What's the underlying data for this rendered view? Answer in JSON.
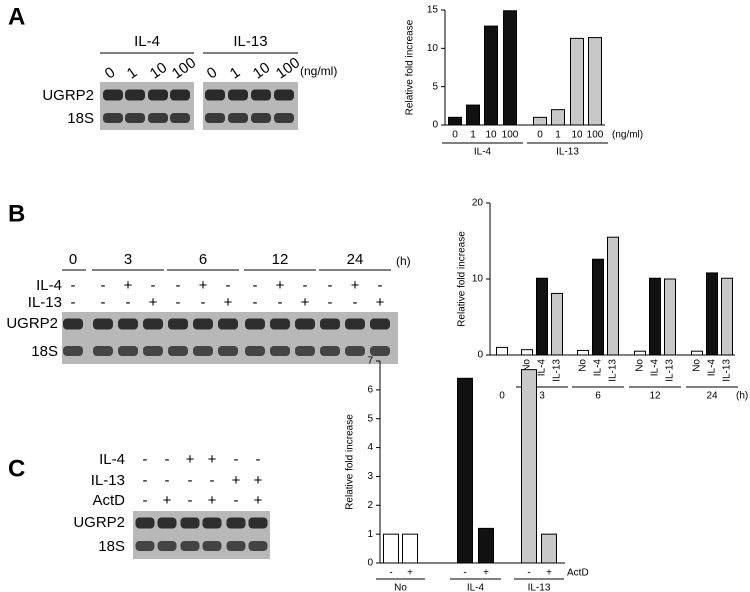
{
  "panel_labels": [
    "A",
    "B",
    "C"
  ],
  "blots": [
    {
      "group_labels": [
        "IL-4",
        "IL-13"
      ],
      "lane_labels": [
        [
          "0",
          "1",
          "10",
          "100"
        ],
        [
          "0",
          "1",
          "10",
          "100"
        ]
      ],
      "unit": "(ng/ml)",
      "rows": [
        "UGRP2",
        "18S"
      ]
    },
    {
      "time_labels": [
        "0",
        "3",
        "6",
        "12",
        "24"
      ],
      "unit": "(h)",
      "treatments": [
        {
          "name": "IL-4",
          "signs": [
            "-",
            "-",
            "+",
            "-",
            "-",
            "+",
            "-",
            "-",
            "+",
            "-",
            "-",
            "+",
            "-"
          ]
        },
        {
          "name": "IL-13",
          "signs": [
            "-",
            "-",
            "-",
            "+",
            "-",
            "-",
            "+",
            "-",
            "-",
            "+",
            "-",
            "-",
            "+"
          ]
        }
      ],
      "rows": [
        "UGRP2",
        "18S"
      ]
    },
    {
      "treatments": [
        {
          "name": "IL-4",
          "signs": [
            "-",
            "-",
            "+",
            "+",
            "-",
            "-"
          ]
        },
        {
          "name": "IL-13",
          "signs": [
            "-",
            "-",
            "-",
            "-",
            "+",
            "+"
          ]
        },
        {
          "name": "ActD",
          "signs": [
            "-",
            "+",
            "-",
            "+",
            "-",
            "+"
          ]
        }
      ],
      "rows": [
        "UGRP2",
        "18S"
      ]
    }
  ],
  "chart_data": [
    {
      "type": "bar",
      "ylabel": "Relative fold increase",
      "ylim": [
        0,
        15
      ],
      "yticks": [
        0,
        5,
        10,
        15
      ],
      "x_unit": "(ng/ml)",
      "groups": [
        {
          "name": "IL-4",
          "categories": [
            "0",
            "1",
            "10",
            "100"
          ],
          "values": [
            1,
            2.6,
            12.9,
            14.9
          ],
          "colors": [
            "#111111",
            "#111111",
            "#111111",
            "#111111"
          ]
        },
        {
          "name": "IL-13",
          "categories": [
            "0",
            "1",
            "10",
            "100"
          ],
          "values": [
            1,
            2,
            11.3,
            11.4
          ],
          "colors": [
            "#c8c8c8",
            "#c8c8c8",
            "#c8c8c8",
            "#c8c8c8"
          ]
        }
      ]
    },
    {
      "type": "bar",
      "ylabel": "Relative fold increase",
      "ylim": [
        0,
        20
      ],
      "yticks": [
        0,
        10,
        20
      ],
      "x_unit": "(h)",
      "groups": [
        {
          "name": "0",
          "categories": [
            null
          ],
          "values": [
            1
          ],
          "colors": [
            "#ffffff"
          ]
        },
        {
          "name": "3",
          "categories": [
            "No",
            "IL-4",
            "IL-13"
          ],
          "values": [
            0.7,
            10.1,
            8.1
          ],
          "colors": [
            "#ffffff",
            "#111111",
            "#c8c8c8"
          ]
        },
        {
          "name": "6",
          "categories": [
            "No",
            "IL-4",
            "IL-13"
          ],
          "values": [
            0.6,
            12.6,
            15.5
          ],
          "colors": [
            "#ffffff",
            "#111111",
            "#c8c8c8"
          ]
        },
        {
          "name": "12",
          "categories": [
            "No",
            "IL-4",
            "IL-13"
          ],
          "values": [
            0.5,
            10.1,
            10
          ],
          "colors": [
            "#ffffff",
            "#111111",
            "#c8c8c8"
          ]
        },
        {
          "name": "24",
          "categories": [
            "No",
            "IL-4",
            "IL-13"
          ],
          "values": [
            0.5,
            10.8,
            10.1
          ],
          "colors": [
            "#ffffff",
            "#111111",
            "#c8c8c8"
          ]
        }
      ]
    },
    {
      "type": "bar",
      "ylabel": "Relative fold increase",
      "ylim": [
        0,
        7
      ],
      "yticks": [
        0,
        1,
        2,
        3,
        4,
        5,
        6,
        7
      ],
      "x_unit": "ActD",
      "groups": [
        {
          "name": "No",
          "categories": [
            "-",
            "+"
          ],
          "values": [
            1,
            1
          ],
          "colors": [
            "#ffffff",
            "#ffffff"
          ]
        },
        {
          "name": "IL-4",
          "categories": [
            "-",
            "+"
          ],
          "values": [
            6.4,
            1.2
          ],
          "colors": [
            "#111111",
            "#111111"
          ]
        },
        {
          "name": "IL-13",
          "categories": [
            "-",
            "+"
          ],
          "values": [
            6.7,
            1
          ],
          "colors": [
            "#c8c8c8",
            "#c8c8c8"
          ]
        }
      ]
    }
  ]
}
